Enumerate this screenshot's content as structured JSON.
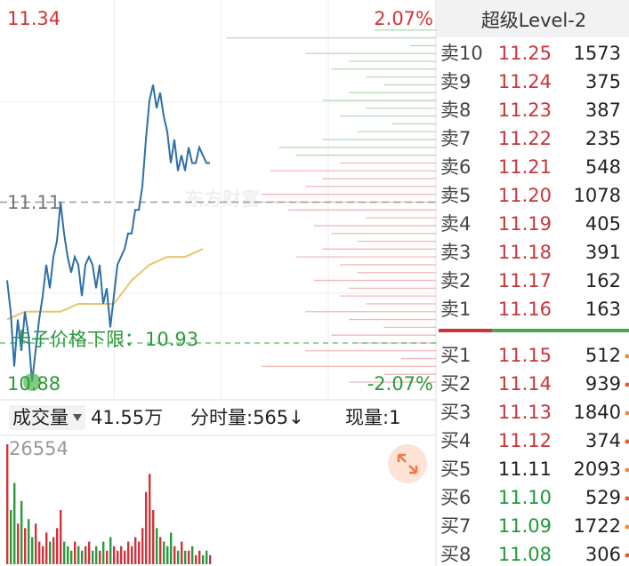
{
  "price_chart": {
    "ylim": [
      10.88,
      11.34
    ],
    "top_pct": "2.07%",
    "bottom_pct": "-2.07%",
    "prev_close": 11.11,
    "limit_label": "卡子价格下限：",
    "limit_price": 10.93,
    "watermark": "东方财富",
    "prices": [
      11.01,
      10.97,
      10.9,
      10.96,
      10.92,
      10.97,
      10.94,
      10.88,
      10.92,
      10.96,
      10.99,
      11.03,
      11.0,
      11.04,
      11.06,
      11.11,
      11.07,
      11.04,
      11.02,
      11.04,
      11.03,
      10.99,
      11.03,
      11.04,
      11.03,
      11.0,
      11.03,
      10.98,
      11.0,
      10.95,
      10.99,
      11.03,
      11.04,
      11.05,
      11.07,
      11.07,
      11.1,
      11.1,
      11.13,
      11.19,
      11.24,
      11.26,
      11.23,
      11.25,
      11.22,
      11.2,
      11.16,
      11.19,
      11.15,
      11.17,
      11.15,
      11.18,
      11.16,
      11.16,
      11.18,
      11.17,
      11.16,
      11.16
    ],
    "avg_prices": [
      10.96,
      10.97,
      10.97,
      10.97,
      10.98,
      10.98,
      10.98,
      11.01,
      11.03,
      11.04,
      11.04,
      11.05
    ],
    "distribution": {
      "prices": [
        11.33,
        11.32,
        11.31,
        11.3,
        11.29,
        11.28,
        11.27,
        11.26,
        11.25,
        11.24,
        11.23,
        11.22,
        11.21,
        11.2,
        11.19,
        11.18,
        11.17,
        11.16,
        11.15,
        11.14,
        11.13,
        11.12,
        11.11,
        11.1,
        11.09,
        11.08,
        11.07,
        11.06,
        11.05,
        11.04,
        11.03,
        11.02,
        11.01,
        11.0,
        10.99,
        10.98,
        10.97,
        10.96,
        10.95,
        10.94,
        10.93,
        10.92,
        10.91,
        10.9,
        10.89,
        10.88
      ],
      "values": [
        70,
        240,
        30,
        150,
        100,
        120,
        80,
        60,
        100,
        130,
        80,
        110,
        50,
        90,
        130,
        180,
        160,
        110,
        190,
        130,
        150,
        200,
        210,
        170,
        80,
        140,
        120,
        90,
        130,
        160,
        110,
        90,
        140,
        100,
        110,
        80,
        150,
        100,
        60,
        120,
        90,
        150,
        40,
        200,
        60,
        100
      ]
    }
  },
  "volume_bar": {
    "selector": "成交量",
    "total": "41.55万",
    "tick_volume": "分时量:565↓",
    "current": "现量:1",
    "ylim": [
      0,
      26554
    ],
    "values": [
      26554,
      12000,
      18000,
      9000,
      14000,
      8000,
      10000,
      6000,
      9000,
      5000,
      4000,
      7000,
      5000,
      6000,
      8000,
      12000,
      5000,
      4000,
      3000,
      5000,
      4000,
      3000,
      4000,
      5000,
      3000,
      4000,
      3000,
      5000,
      3000,
      6000,
      4000,
      3000,
      4000,
      3000,
      5000,
      4000,
      6000,
      5000,
      8000,
      16000,
      20000,
      12000,
      8000,
      6000,
      5000,
      4000,
      7000,
      4000,
      3000,
      5000,
      3000,
      3000,
      4000,
      2000,
      3000,
      2000,
      3000,
      2000
    ]
  },
  "order_book": {
    "title": "超级Level-2",
    "asks": [
      [
        "卖10",
        "11.25",
        "1573"
      ],
      [
        "卖9",
        "11.24",
        "375"
      ],
      [
        "卖8",
        "11.23",
        "387"
      ],
      [
        "卖7",
        "11.22",
        "235"
      ],
      [
        "卖6",
        "11.21",
        "548"
      ],
      [
        "卖5",
        "11.20",
        "1078"
      ],
      [
        "卖4",
        "11.19",
        "405"
      ],
      [
        "卖3",
        "11.18",
        "391"
      ],
      [
        "卖2",
        "11.17",
        "162"
      ],
      [
        "卖1",
        "11.16",
        "163"
      ]
    ],
    "bids": [
      [
        "买1",
        "11.15",
        "512"
      ],
      [
        "买2",
        "11.14",
        "939"
      ],
      [
        "买3",
        "11.13",
        "1840"
      ],
      [
        "买4",
        "11.12",
        "374"
      ],
      [
        "买5",
        "11.11",
        "2093"
      ],
      [
        "买6",
        "11.10",
        "529"
      ],
      [
        "买7",
        "11.09",
        "1722"
      ],
      [
        "买8",
        "11.08",
        "306"
      ]
    ]
  }
}
